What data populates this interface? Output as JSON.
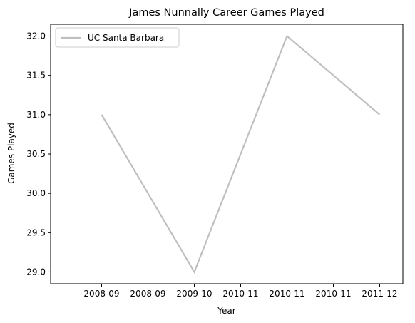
{
  "chart_data": {
    "type": "line",
    "title": "James Nunnally Career Games Played",
    "xlabel": "Year",
    "ylabel": "Games Played",
    "x_tick_labels": [
      "2008-09",
      "2008-09",
      "2009-10",
      "2010-11",
      "2010-11",
      "2010-11",
      "2011-12"
    ],
    "series": [
      {
        "name": "UC Santa Barbara",
        "color": "#bfbfbf",
        "x": [
          "2008-09",
          "2009-10",
          "2010-11",
          "2011-12"
        ],
        "values": [
          31,
          29,
          32,
          31
        ]
      }
    ],
    "ylim": [
      28.85,
      32.15
    ],
    "y_ticks": [
      "29.0",
      "29.5",
      "30.0",
      "30.5",
      "31.0",
      "31.5",
      "32.0"
    ],
    "legend_position": "upper-left",
    "grid": false
  }
}
